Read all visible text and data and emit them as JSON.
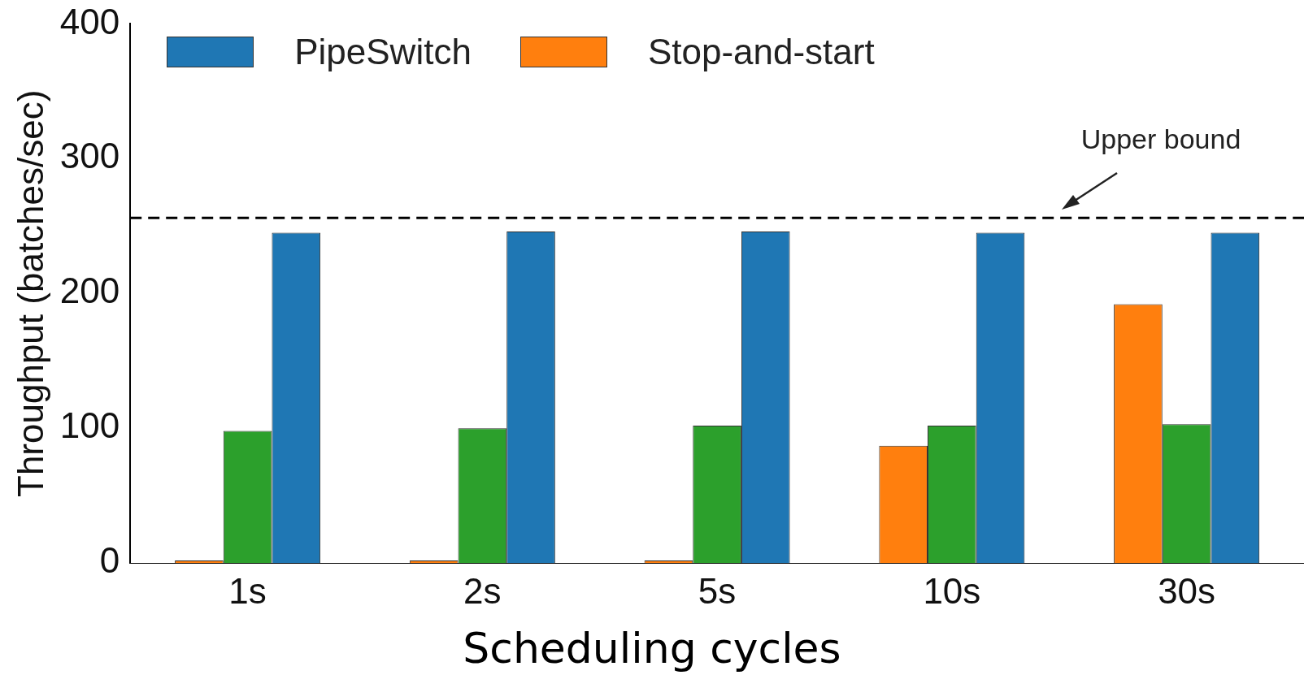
{
  "chart_data": {
    "type": "bar",
    "xlabel": "Scheduling cycles",
    "ylabel": "Throughput (batches/sec)",
    "categories": [
      "1s",
      "2s",
      "5s",
      "10s",
      "30s"
    ],
    "series": [
      {
        "name": "Stop-and-start",
        "color": "#ff7f0e",
        "values": [
          2,
          2,
          2,
          87,
          192
        ]
      },
      {
        "color": "#2ca02c",
        "values": [
          98,
          100,
          102,
          102,
          103
        ]
      },
      {
        "name": "PipeSwitch",
        "color": "#1f77b4",
        "values": [
          245,
          246,
          246,
          245,
          245
        ]
      }
    ],
    "ylim": [
      0,
      400
    ],
    "yticks": [
      0,
      100,
      200,
      300,
      400
    ],
    "grid": false,
    "legend": "top left",
    "ref_lines": [
      {
        "axis": "y",
        "value": 256,
        "label": "Upper bound",
        "color": "#000000",
        "line_style": "dashed"
      }
    ]
  }
}
